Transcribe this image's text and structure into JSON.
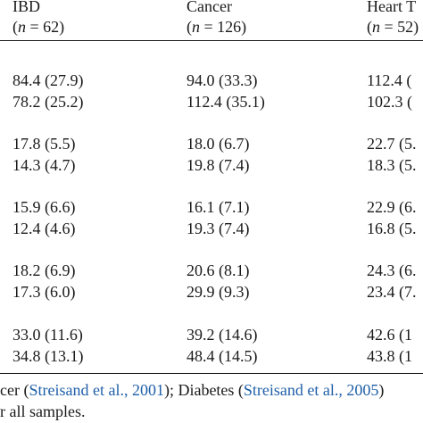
{
  "headers": [
    {
      "name": "IBD",
      "n": "62"
    },
    {
      "name": "Cancer",
      "n": "126"
    },
    {
      "name": "Heart T",
      "n": "52"
    }
  ],
  "n_prefix": "(",
  "n_var": "n",
  "n_eq": " = ",
  "n_suffix": ")",
  "groups": [
    {
      "rows": [
        [
          "84.4 (27.9)",
          "94.0 (33.3)",
          "112.4 ("
        ],
        [
          "78.2 (25.2)",
          "112.4 (35.1)",
          "102.3 ("
        ]
      ]
    },
    {
      "rows": [
        [
          "17.8 (5.5)",
          "18.0 (6.7)",
          "22.7 (5."
        ],
        [
          "14.3 (4.7)",
          "19.8 (7.4)",
          "18.3 (5."
        ]
      ]
    },
    {
      "rows": [
        [
          "15.9 (6.6)",
          "16.1 (7.1)",
          "22.9 (6."
        ],
        [
          "12.4 (4.6)",
          "19.3 (7.4)",
          "16.8 (5."
        ]
      ]
    },
    {
      "rows": [
        [
          "18.2 (6.9)",
          "20.6 (8.1)",
          "24.3 (6."
        ],
        [
          "17.3 (6.0)",
          "29.9 (9.3)",
          "23.4 (7."
        ]
      ]
    },
    {
      "rows": [
        [
          "33.0 (11.6)",
          "39.2 (14.6)",
          "42.6 (1"
        ],
        [
          "34.8 (13.1)",
          "48.4 (14.5)",
          "43.8 (1"
        ]
      ]
    }
  ],
  "footnote": {
    "line1_pre": "cer (",
    "cite1": "Streisand et al., 2001",
    "line1_mid": "); Diabetes (",
    "cite2": "Streisand et al., 2005",
    "line1_post": ")",
    "line2": "r all samples."
  }
}
